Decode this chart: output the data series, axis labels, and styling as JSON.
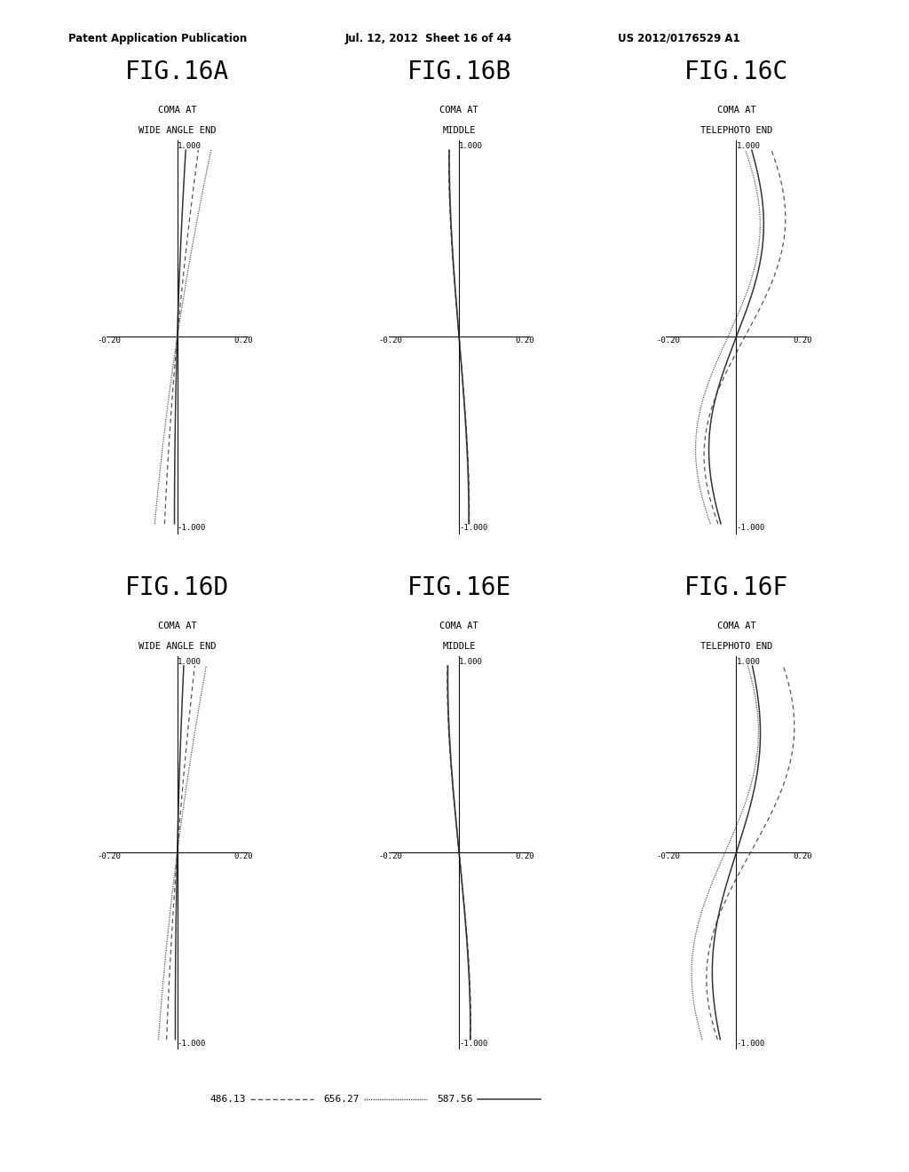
{
  "header_left": "Patent Application Publication",
  "header_mid": "Jul. 12, 2012  Sheet 16 of 44",
  "header_right": "US 2012/0176529 A1",
  "figures": [
    {
      "title": "FIG.16A",
      "subtitle1": "COMA AT",
      "subtitle2": "WIDE ANGLE END"
    },
    {
      "title": "FIG.16B",
      "subtitle1": "COMA AT",
      "subtitle2": "MIDDLE"
    },
    {
      "title": "FIG.16C",
      "subtitle1": "COMA AT",
      "subtitle2": "TELEPHOTO END"
    },
    {
      "title": "FIG.16D",
      "subtitle1": "COMA AT",
      "subtitle2": "WIDE ANGLE END"
    },
    {
      "title": "FIG.16E",
      "subtitle1": "COMA AT",
      "subtitle2": "MIDDLE"
    },
    {
      "title": "FIG.16F",
      "subtitle1": "COMA AT",
      "subtitle2": "TELEPHOTO END"
    }
  ],
  "xlim": [
    -0.25,
    0.25
  ],
  "ylim": [
    -1.05,
    1.05
  ],
  "bg_color": "#ffffff"
}
